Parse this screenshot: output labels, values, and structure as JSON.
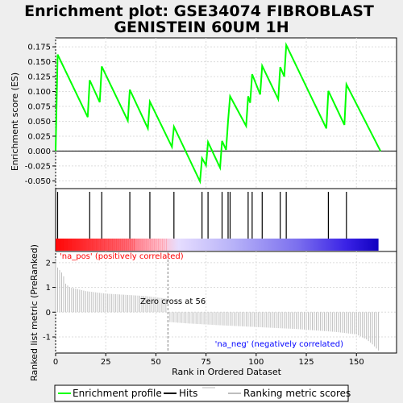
{
  "title_line1": "Enrichment plot: GSE34074 FIBROBLAST",
  "title_line2": "GENISTEIN 60UM 1H",
  "chart_data": {
    "type": "line",
    "xlabel": "Rank in Ordered Dataset",
    "ylabel_top": "Enrichment score (ES)",
    "ylabel_bottom": "Ranked list metric (PreRanked)",
    "xlim": [
      0,
      170
    ],
    "ylim_top": [
      -0.063,
      0.19
    ],
    "ylim_bottom": [
      -1.65,
      2.45
    ],
    "x_ticks": [
      "0",
      "25",
      "50",
      "75",
      "100",
      "125",
      "150"
    ],
    "y_ticks_top": [
      "-0.050",
      "-0.025",
      "0.000",
      "0.025",
      "0.050",
      "0.075",
      "0.100",
      "0.125",
      "0.150",
      "0.175"
    ],
    "y_ticks_bottom": [
      "-1",
      "0",
      "1",
      "2"
    ],
    "hits": [
      1,
      17,
      23,
      37,
      47,
      59,
      73,
      76,
      83,
      86,
      87,
      96,
      98,
      103,
      112,
      115,
      136,
      145
    ],
    "es_points": [
      [
        0,
        0.0
      ],
      [
        1,
        0.162
      ],
      [
        16,
        0.057
      ],
      [
        17,
        0.119
      ],
      [
        22,
        0.082
      ],
      [
        23,
        0.142
      ],
      [
        36,
        0.051
      ],
      [
        37,
        0.103
      ],
      [
        46,
        0.038
      ],
      [
        47,
        0.083
      ],
      [
        58,
        0.007
      ],
      [
        59,
        0.041
      ],
      [
        72,
        -0.051
      ],
      [
        73,
        -0.012
      ],
      [
        75,
        -0.024
      ],
      [
        76,
        0.015
      ],
      [
        82,
        -0.028
      ],
      [
        83,
        0.017
      ],
      [
        85,
        0.002
      ],
      [
        86,
        0.051
      ],
      [
        87,
        0.092
      ],
      [
        95,
        0.042
      ],
      [
        96,
        0.092
      ],
      [
        97,
        0.081
      ],
      [
        98,
        0.129
      ],
      [
        102,
        0.095
      ],
      [
        103,
        0.143
      ],
      [
        111,
        0.087
      ],
      [
        112,
        0.141
      ],
      [
        114,
        0.125
      ],
      [
        115,
        0.178
      ],
      [
        135,
        0.038
      ],
      [
        136,
        0.101
      ],
      [
        144,
        0.044
      ],
      [
        145,
        0.112
      ],
      [
        162,
        0.0
      ]
    ],
    "metric_anchors": [
      [
        0,
        2.1
      ],
      [
        1,
        1.8
      ],
      [
        2,
        1.7
      ],
      [
        3,
        1.6
      ],
      [
        4,
        1.45
      ],
      [
        5,
        1.15
      ],
      [
        7,
        1.0
      ],
      [
        10,
        0.95
      ],
      [
        15,
        0.85
      ],
      [
        25,
        0.75
      ],
      [
        35,
        0.7
      ],
      [
        45,
        0.65
      ],
      [
        55,
        0.55
      ],
      [
        56,
        0.0
      ],
      [
        57,
        -0.4
      ],
      [
        65,
        -0.45
      ],
      [
        80,
        -0.52
      ],
      [
        100,
        -0.6
      ],
      [
        120,
        -0.68
      ],
      [
        140,
        -0.8
      ],
      [
        150,
        -0.9
      ],
      [
        155,
        -1.1
      ],
      [
        158,
        -1.3
      ],
      [
        161,
        -1.55
      ]
    ],
    "zero_cross": 56,
    "zero_cross_label": "Zero cross at 56",
    "pos_label": "'na_pos' (positively correlated)",
    "neg_label": "'na_neg' (negatively correlated)",
    "legend": [
      "Enrichment profile",
      "Hits",
      "Ranking metric scores"
    ],
    "colors": {
      "es_line": "#00ff00",
      "hit_line": "#000000",
      "metric_bar": "#bebebe",
      "pos_label": "#ff0000",
      "neg_label": "#0000ff",
      "zero_cross_line": "#808080",
      "grid": "#dcdcdc",
      "gradient": [
        "#ff0000",
        "#ff9fae",
        "#dcd6ff",
        "#7f73ee",
        "#1d00e8"
      ]
    }
  }
}
